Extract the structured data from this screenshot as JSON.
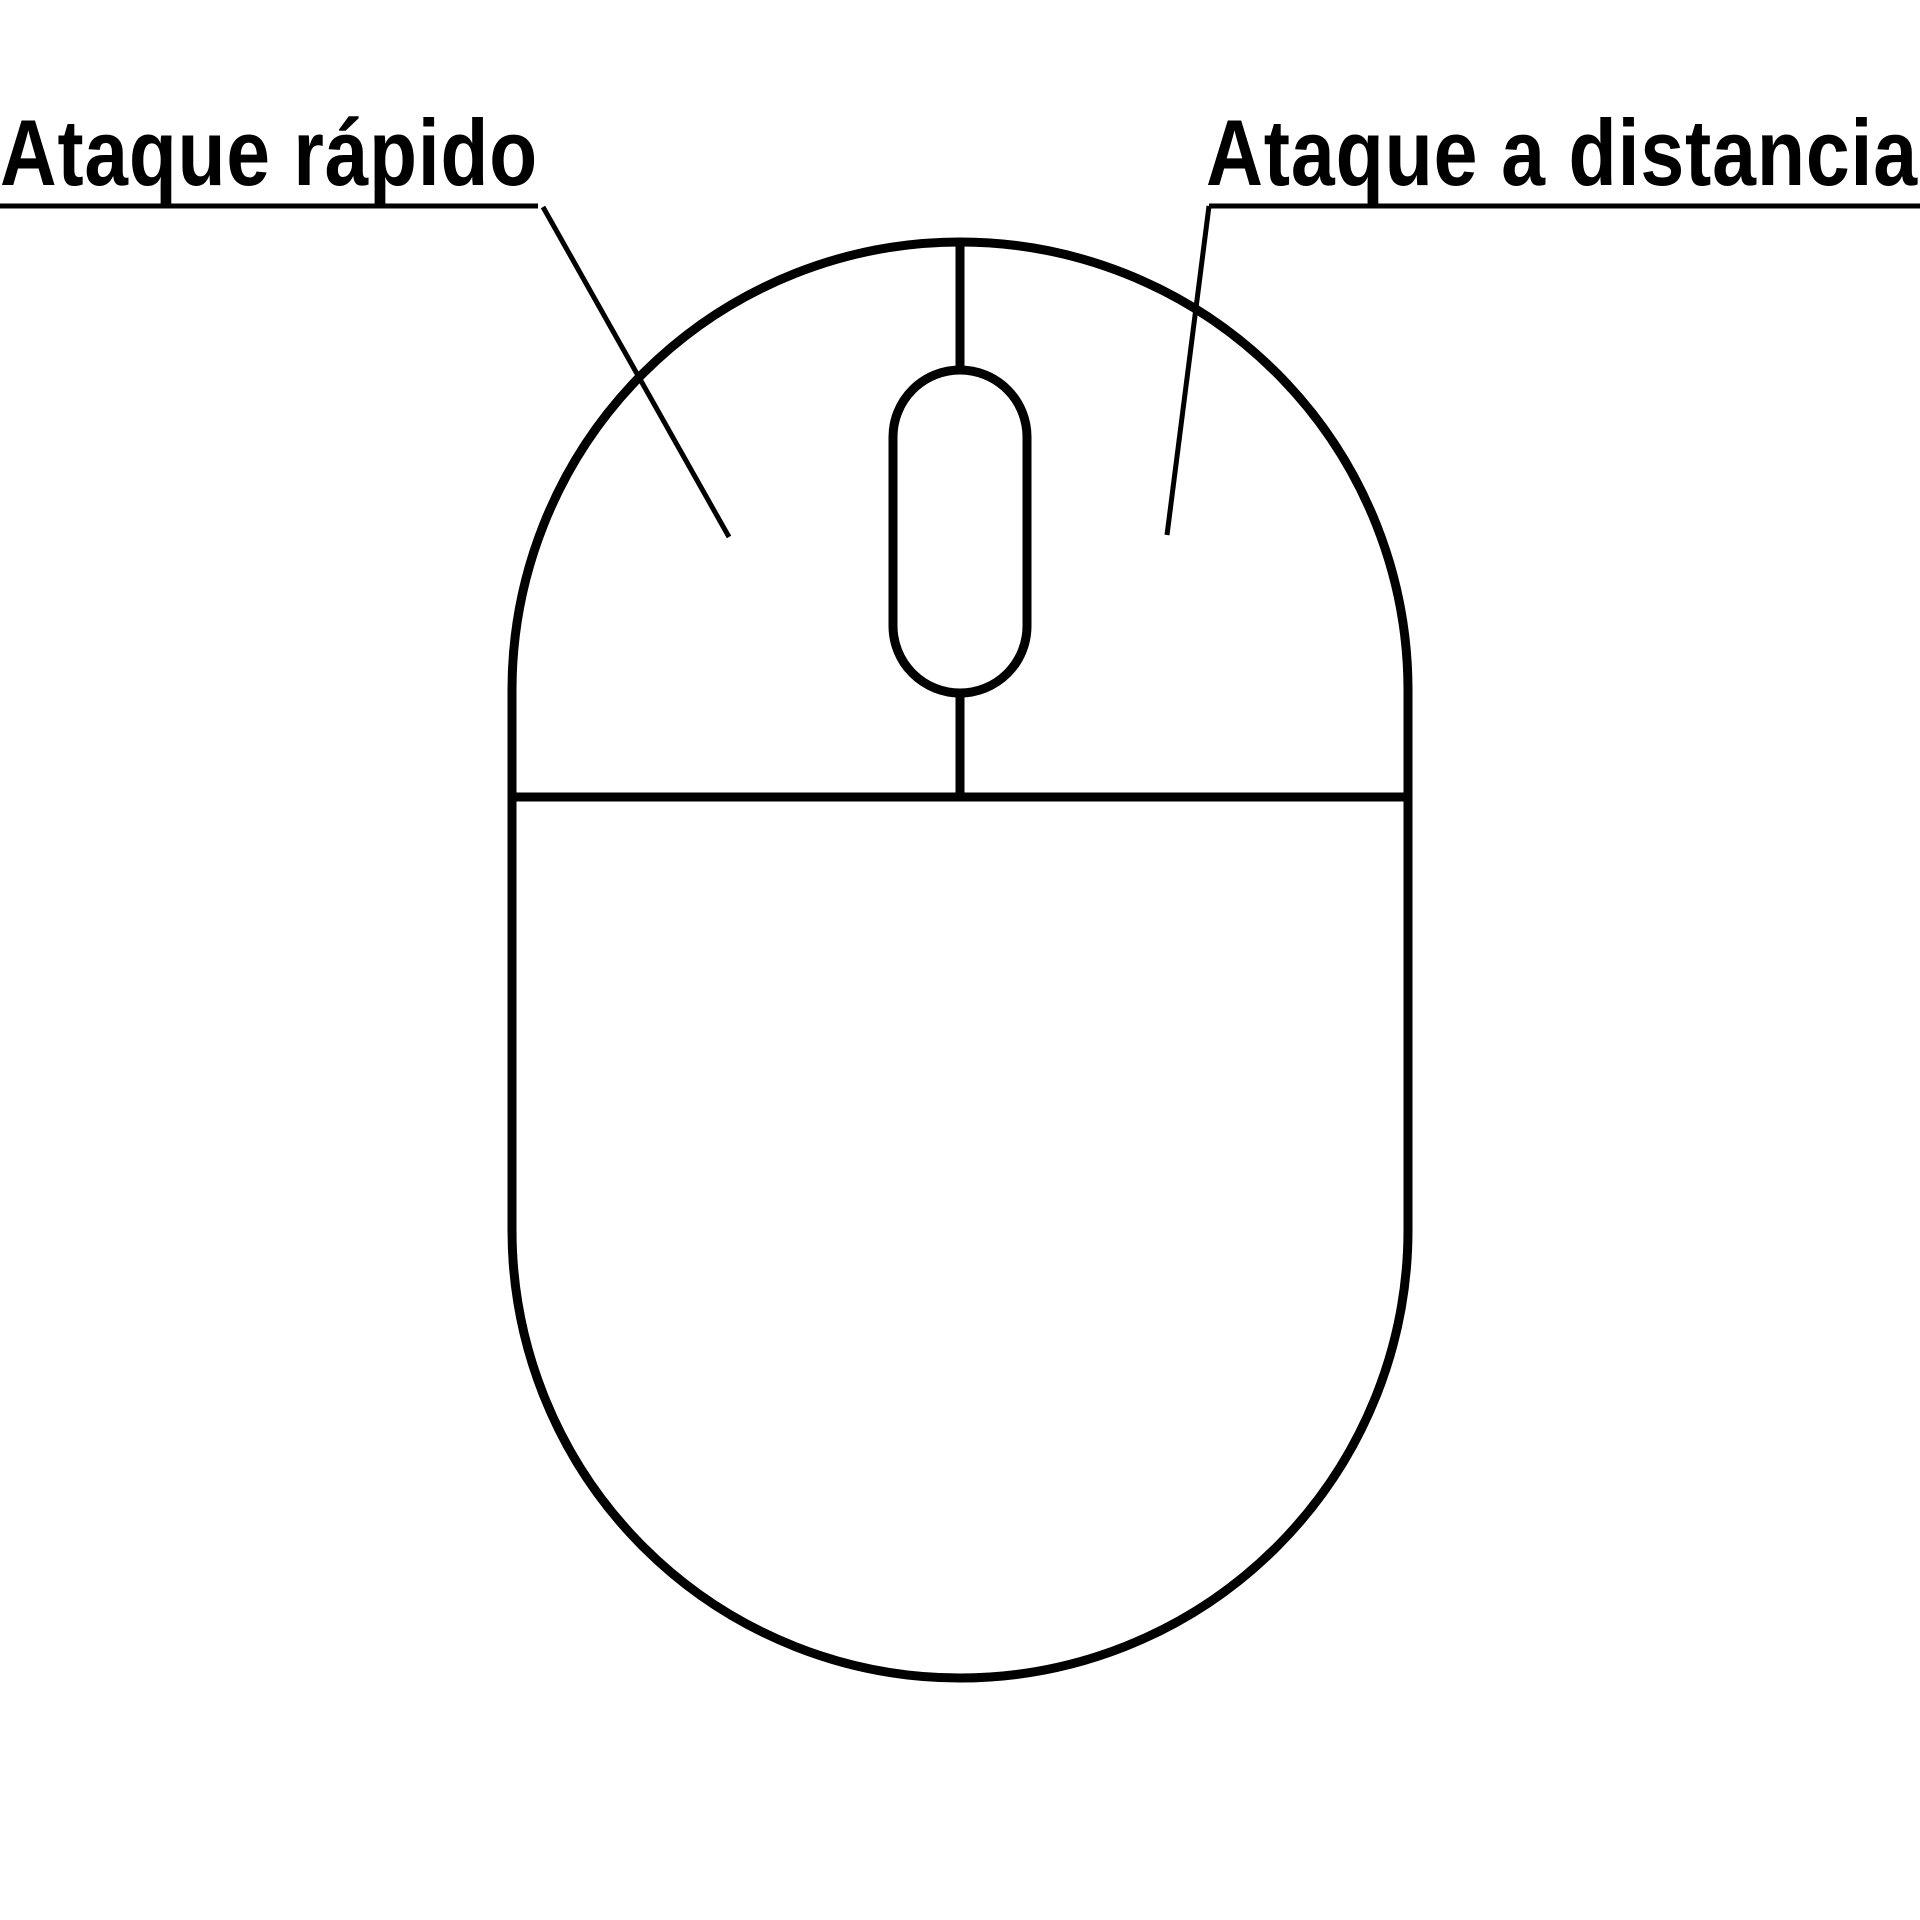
{
  "diagram": {
    "subject-icon": "computer-mouse-icon",
    "labels": {
      "left_button": "Ataque rápido",
      "right_button": "Ataque a distancia"
    },
    "colors": {
      "stroke": "#000000",
      "background": "#ffffff"
    }
  }
}
